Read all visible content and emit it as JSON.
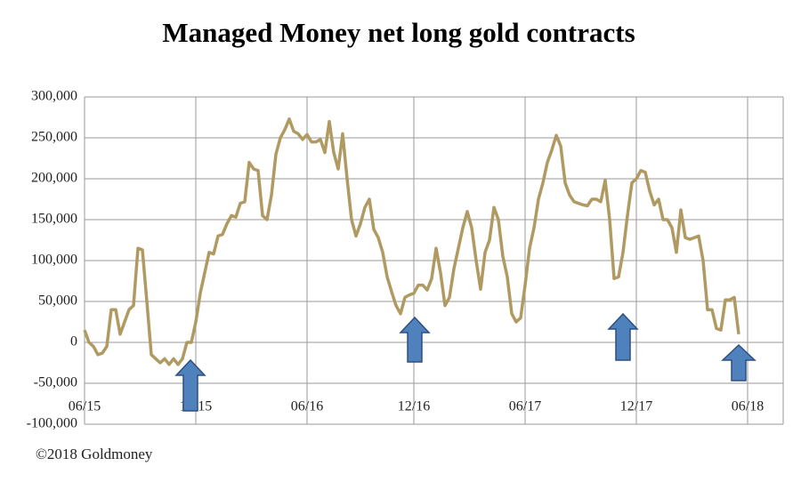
{
  "chart_data": {
    "type": "line",
    "title": "Managed Money net long gold contracts",
    "source": "©2018 Goldmoney",
    "series": [
      {
        "name": "Managed Money net long",
        "color": "#b09a62",
        "values": [
          15000,
          0,
          -5000,
          -15000,
          -13000,
          -5000,
          40000,
          40000,
          10000,
          25000,
          40000,
          45000,
          115000,
          113000,
          50000,
          -15000,
          -20000,
          -25000,
          -20000,
          -27000,
          -20000,
          -27000,
          -20000,
          0,
          0,
          25000,
          60000,
          85000,
          110000,
          108000,
          130000,
          132000,
          145000,
          155000,
          153000,
          170000,
          172000,
          220000,
          212000,
          210000,
          155000,
          150000,
          180000,
          230000,
          250000,
          260000,
          273000,
          258000,
          255000,
          248000,
          254000,
          245000,
          245000,
          248000,
          232000,
          270000,
          232000,
          212000,
          255000,
          200000,
          150000,
          130000,
          145000,
          165000,
          175000,
          138000,
          128000,
          110000,
          80000,
          62000,
          45000,
          35000,
          55000,
          58000,
          60000,
          70000,
          70000,
          64000,
          78000,
          115000,
          85000,
          45000,
          55000,
          90000,
          115000,
          140000,
          160000,
          140000,
          100000,
          65000,
          110000,
          125000,
          165000,
          150000,
          105000,
          80000,
          35000,
          25000,
          30000,
          70000,
          115000,
          140000,
          175000,
          195000,
          220000,
          235000,
          253000,
          240000,
          195000,
          180000,
          172000,
          170000,
          168000,
          167000,
          175000,
          175000,
          172000,
          198000,
          150000,
          78000,
          80000,
          110000,
          155000,
          195000,
          200000,
          210000,
          208000,
          185000,
          168000,
          175000,
          150000,
          150000,
          140000,
          110000,
          162000,
          128000,
          126000,
          128000,
          130000,
          100000,
          40000,
          40000,
          17000,
          15000,
          52000,
          52000,
          55000,
          10000
        ]
      }
    ],
    "xlim": [
      0,
      157
    ],
    "xticks": [
      {
        "value": 0,
        "label": "06/15"
      },
      {
        "value": 25,
        "label": "12/15"
      },
      {
        "value": 50,
        "label": "06/16"
      },
      {
        "value": 74,
        "label": "12/16"
      },
      {
        "value": 99,
        "label": "06/17"
      },
      {
        "value": 124,
        "label": "12/17"
      },
      {
        "value": 149,
        "label": "06/18"
      }
    ],
    "ylim": [
      -100000,
      300000
    ],
    "yticks": [
      {
        "value": -100000,
        "label": "-100,000"
      },
      {
        "value": -50000,
        "label": "-50,000"
      },
      0,
      {
        "value": 50000,
        "label": "50,000"
      },
      {
        "value": 100000,
        "label": "100,000"
      },
      {
        "value": 150000,
        "label": "150,000"
      },
      {
        "value": 200000,
        "label": "200,000"
      },
      {
        "value": 250000,
        "label": "250,000"
      },
      {
        "value": 300000,
        "label": "300,000"
      }
    ],
    "grid": true
  }
}
